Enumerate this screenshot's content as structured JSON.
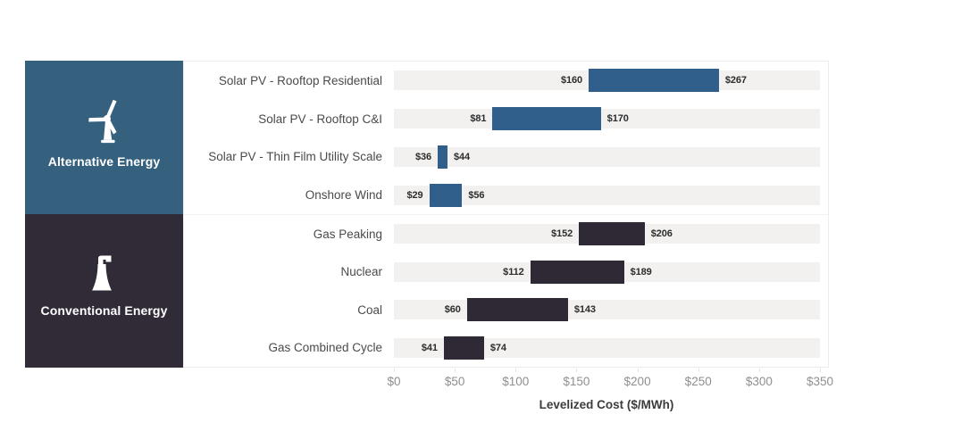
{
  "page": {
    "background": "#ffffff"
  },
  "chart_data": {
    "type": "bar",
    "subtype": "horizontal-range-bars",
    "title": "",
    "xlabel": "Levelized Cost ($/MWh)",
    "xlim": [
      0,
      350
    ],
    "grid": false,
    "legend": "none",
    "track_color": "#f2f1f0",
    "x_ticks": [
      {
        "value": 0,
        "label": "$0"
      },
      {
        "value": 50,
        "label": "$50"
      },
      {
        "value": 100,
        "label": "$100"
      },
      {
        "value": 150,
        "label": "$150"
      },
      {
        "value": 200,
        "label": "$200"
      },
      {
        "value": 250,
        "label": "$250"
      },
      {
        "value": 300,
        "label": "$300"
      },
      {
        "value": 350,
        "label": "$350"
      }
    ],
    "groups": [
      {
        "name": "Alternative Energy",
        "icon": "wind-turbine-icon",
        "bar_color": "#2f5f8a",
        "badge_color": "#35607e",
        "rows": [
          {
            "category": "Solar PV - Rooftop Residential",
            "min": 160,
            "max": 267,
            "min_label": "$160",
            "max_label": "$267"
          },
          {
            "category": "Solar PV - Rooftop C&I",
            "min": 81,
            "max": 170,
            "min_label": "$81",
            "max_label": "$170"
          },
          {
            "category": "Solar PV - Thin Film Utility Scale",
            "min": 36,
            "max": 44,
            "min_label": "$36",
            "max_label": "$44"
          },
          {
            "category": "Onshore Wind",
            "min": 29,
            "max": 56,
            "min_label": "$29",
            "max_label": "$56"
          }
        ]
      },
      {
        "name": "Conventional Energy",
        "icon": "power-plant-icon",
        "bar_color": "#2e2935",
        "badge_color": "#302b37",
        "rows": [
          {
            "category": "Gas Peaking",
            "min": 152,
            "max": 206,
            "min_label": "$152",
            "max_label": "$206"
          },
          {
            "category": "Nuclear",
            "min": 112,
            "max": 189,
            "min_label": "$112",
            "max_label": "$189"
          },
          {
            "category": "Coal",
            "min": 60,
            "max": 143,
            "min_label": "$60",
            "max_label": "$143"
          },
          {
            "category": "Gas Combined Cycle",
            "min": 41,
            "max": 74,
            "min_label": "$41",
            "max_label": "$74"
          }
        ]
      }
    ]
  }
}
